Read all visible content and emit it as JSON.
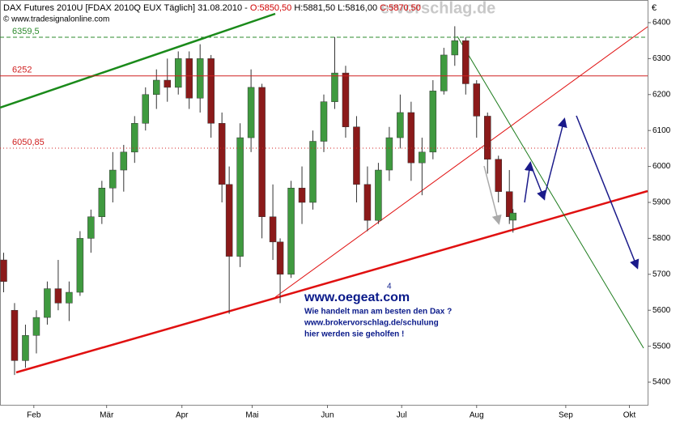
{
  "chart_data": {
    "type": "candlestick",
    "title_parts": [
      "DAX Futures 2010U [FDAX 2010Q EUX  Täglich] 31.08.2010 - ",
      "O:5850,50",
      " H:5881,50 L:5816,00 ",
      "C:5870,50"
    ],
    "source": "© www.tradesignalonline.com",
    "watermark": "ervorschlag.de",
    "currency": "€",
    "annotations": [
      "4",
      "www.oegeat.com",
      "Wie handelt man am besten den Dax ?",
      "www.brokervorschlag.de/schulung",
      "hier werden sie geholfen !"
    ],
    "x": [
      1,
      4,
      7,
      10,
      13,
      16,
      19,
      22,
      25,
      28,
      31,
      34,
      37,
      40,
      43,
      46,
      49,
      52,
      55,
      58,
      61,
      63,
      66,
      69,
      72,
      75,
      77,
      80,
      83,
      86,
      89,
      92,
      95,
      98,
      101,
      104,
      107,
      110,
      113,
      116,
      119,
      122,
      125,
      128,
      131,
      134,
      137,
      140,
      141
    ],
    "open": [
      5740,
      5600,
      5460,
      5530,
      5580,
      5660,
      5620,
      5650,
      5800,
      5860,
      5940,
      5990,
      6040,
      6120,
      6200,
      6240,
      6220,
      6300,
      6190,
      6300,
      6120,
      5950,
      5750,
      6080,
      6220,
      5860,
      5790,
      5700,
      5940,
      5900,
      6070,
      6180,
      6260,
      6110,
      5950,
      5850,
      5990,
      6080,
      6150,
      6010,
      6040,
      6210,
      6310,
      6350,
      6230,
      6140,
      6020,
      5930,
      5850.5
    ],
    "high": [
      5760,
      5620,
      5560,
      5600,
      5680,
      5740,
      5680,
      5820,
      5880,
      5960,
      6040,
      6060,
      6140,
      6220,
      6270,
      6300,
      6320,
      6320,
      6340,
      6310,
      6150,
      6000,
      6120,
      6270,
      6230,
      5950,
      5800,
      5960,
      6000,
      6100,
      6200,
      6360,
      6280,
      6140,
      6000,
      6010,
      6110,
      6200,
      6180,
      6080,
      6240,
      6330,
      6390,
      6360,
      6240,
      6150,
      6030,
      5990,
      5881.5
    ],
    "low": [
      5650,
      5420,
      5440,
      5480,
      5560,
      5600,
      5570,
      5640,
      5760,
      5840,
      5900,
      5930,
      6010,
      6100,
      6160,
      6180,
      6200,
      6160,
      6150,
      6080,
      5900,
      5590,
      5720,
      6040,
      5800,
      5740,
      5620,
      5690,
      5840,
      5880,
      6040,
      6160,
      6080,
      5900,
      5820,
      5840,
      5960,
      6050,
      5960,
      5920,
      6020,
      6200,
      6280,
      6200,
      6080,
      5980,
      5900,
      5840,
      5816
    ],
    "close": [
      5680,
      5460,
      5530,
      5580,
      5660,
      5620,
      5650,
      5800,
      5860,
      5940,
      5990,
      6040,
      6120,
      6200,
      6240,
      6220,
      6300,
      6190,
      6300,
      6120,
      5950,
      5750,
      6080,
      6220,
      5860,
      5790,
      5700,
      5940,
      5900,
      6070,
      6180,
      6260,
      6110,
      5950,
      5850,
      5990,
      6080,
      6150,
      6010,
      6040,
      6210,
      6310,
      6350,
      6230,
      6140,
      6020,
      5930,
      5860,
      5870.5
    ],
    "up_color": "#3f9a3f",
    "down_color": "#8b1a1a",
    "levels": [
      {
        "value": 6359.5,
        "label": "6359,5",
        "color": "#2e8b2e",
        "style": "dashed"
      },
      {
        "value": 6252,
        "label": "6252",
        "color": "#d02020",
        "style": "solid"
      },
      {
        "value": 6050.85,
        "label": "6050,85",
        "color": "#d02020",
        "style": "dotted"
      }
    ],
    "xlim": [
      0,
      178
    ],
    "xticks": [
      {
        "value": 9.3,
        "label": "Feb"
      },
      {
        "value": 29.3,
        "label": "Mär"
      },
      {
        "value": 50,
        "label": "Apr"
      },
      {
        "value": 69.3,
        "label": "Mai"
      },
      {
        "value": 90,
        "label": "Jun"
      },
      {
        "value": 110.4,
        "label": "Jul"
      },
      {
        "value": 131,
        "label": "Aug"
      },
      {
        "value": 155.5,
        "label": "Sep"
      },
      {
        "value": 173,
        "label": "Okt"
      }
    ],
    "ylim": [
      5337,
      6463
    ],
    "yticks": [
      5400,
      5500,
      5600,
      5700,
      5800,
      5900,
      6000,
      6100,
      6200,
      6300,
      6400
    ]
  }
}
